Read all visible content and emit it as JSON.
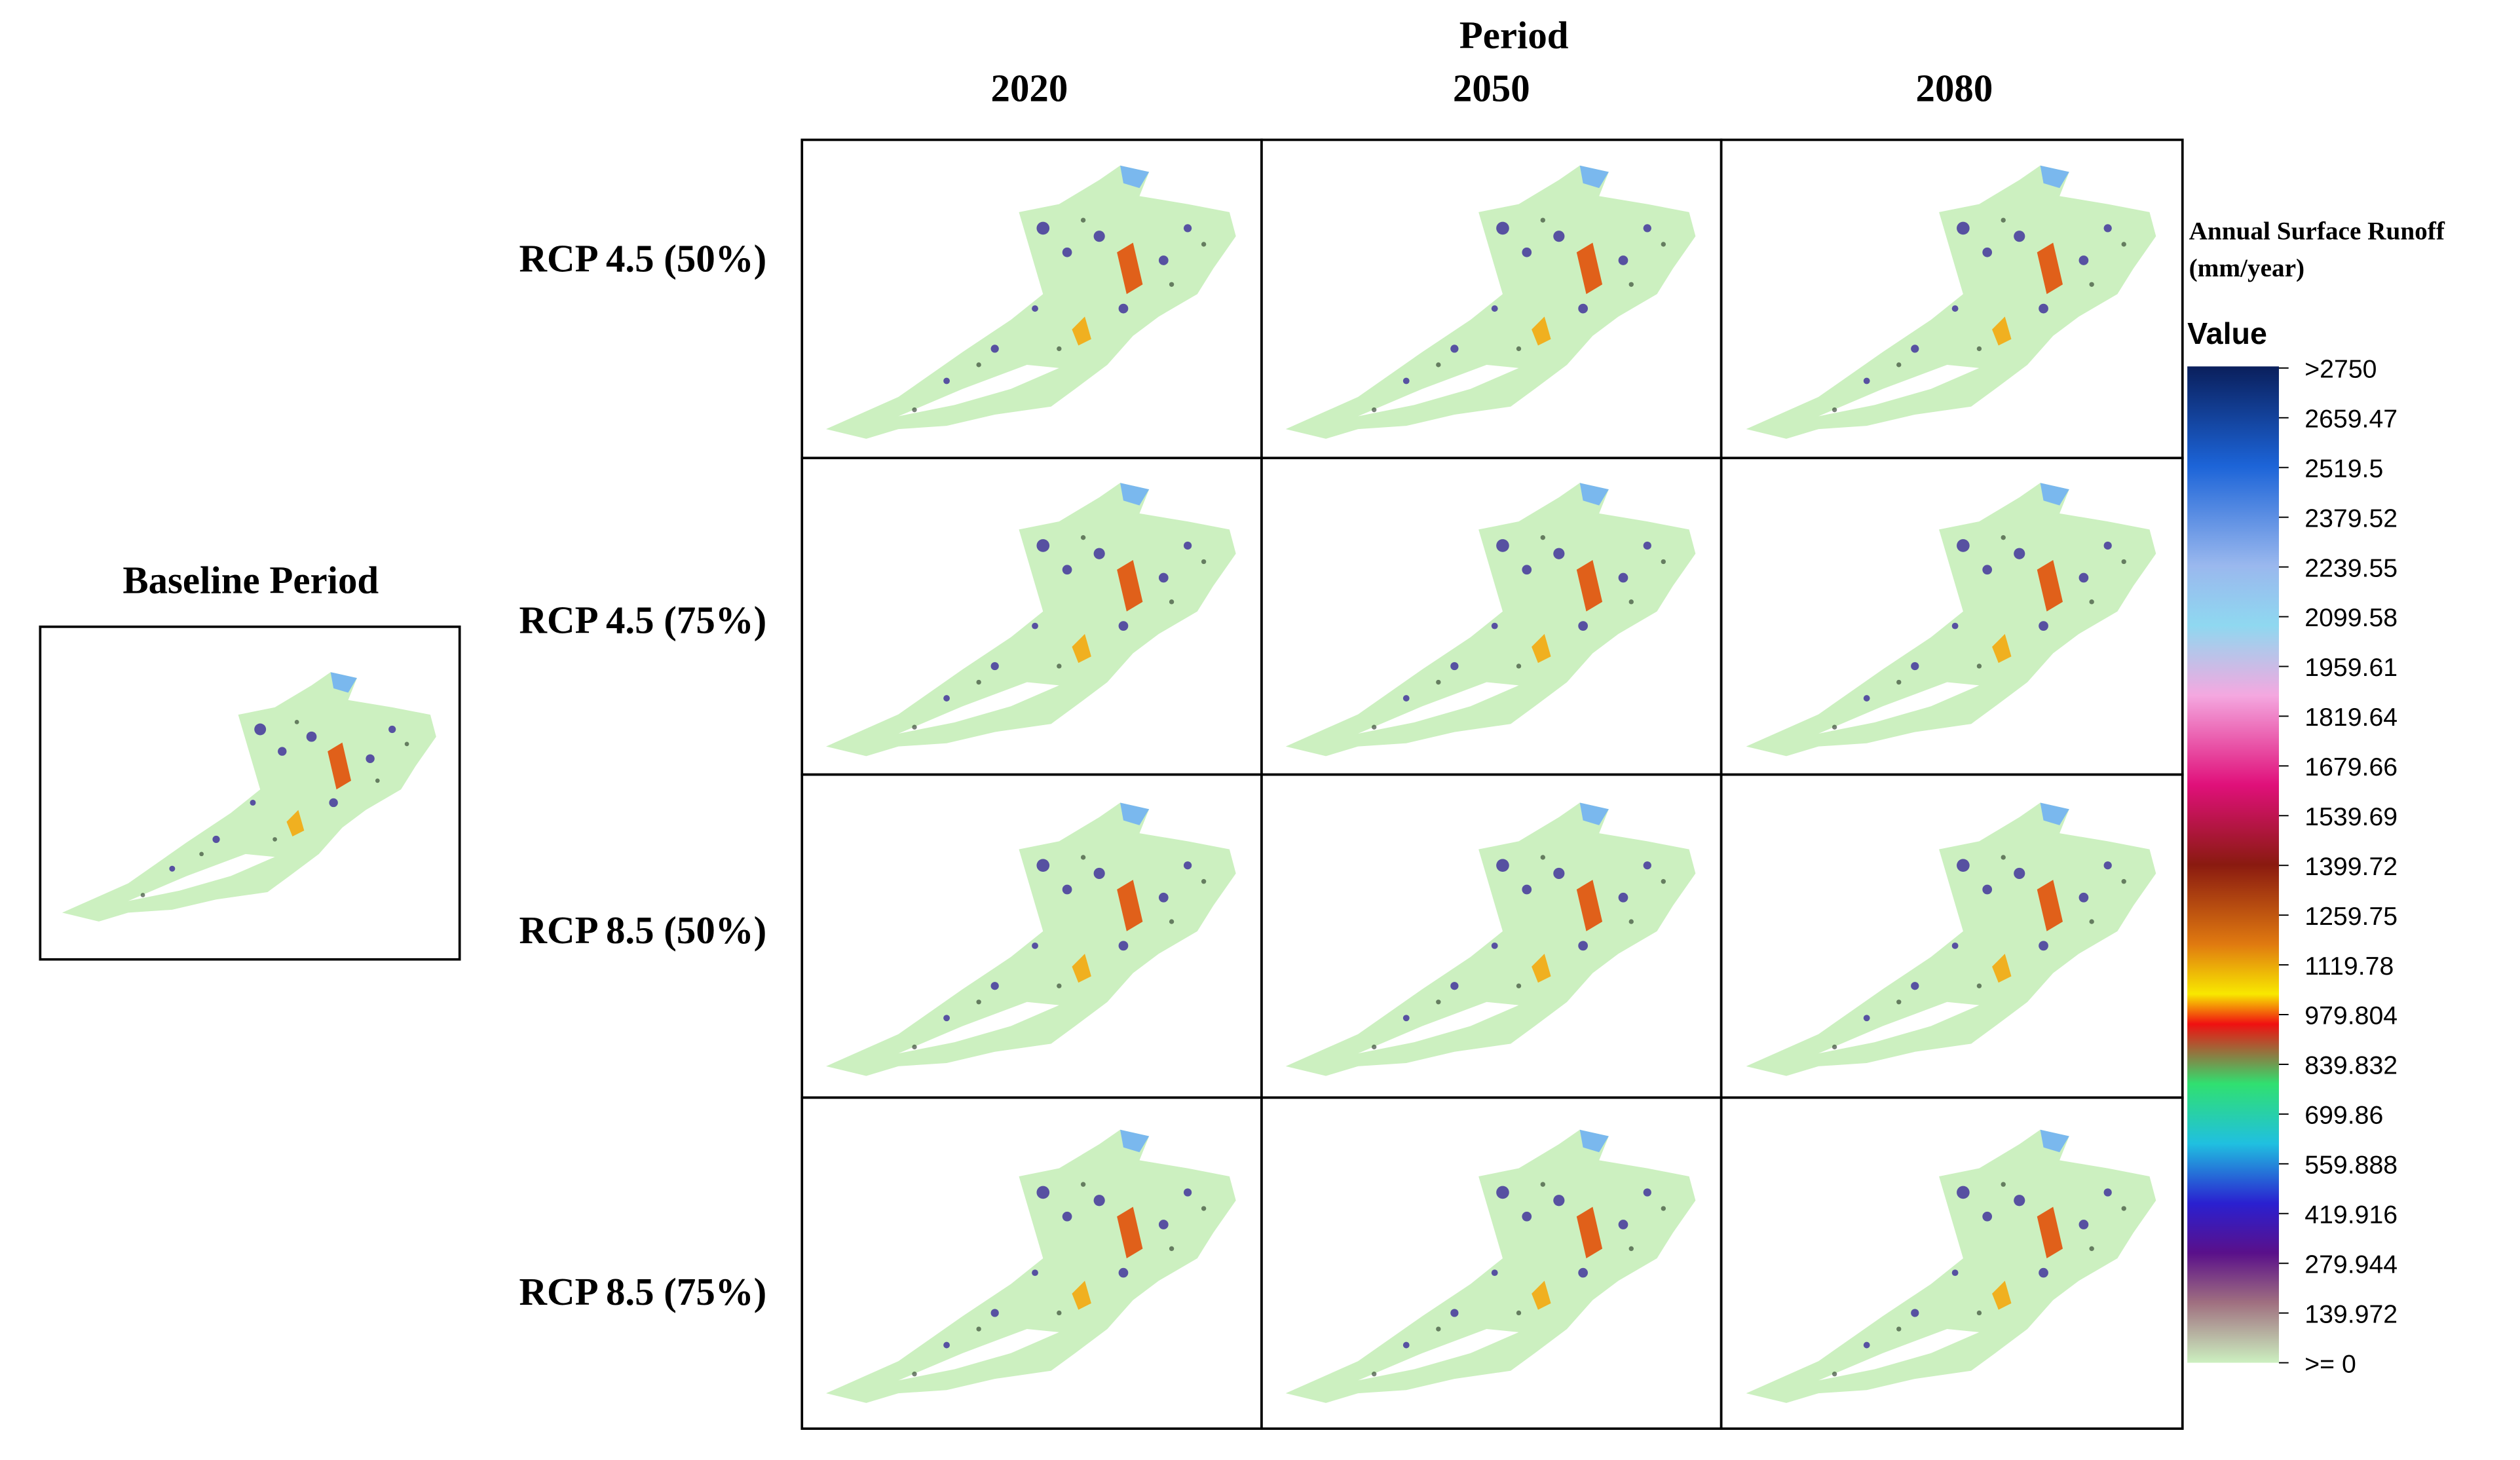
{
  "header": {
    "period": "Period",
    "columns": [
      "2020",
      "2050",
      "2080"
    ]
  },
  "rows": [
    "RCP 4.5 (50%)",
    "RCP 4.5 (75%)",
    "RCP 8.5 (50%)",
    "RCP 8.5 (75%)"
  ],
  "baseline": {
    "title": "Baseline Period"
  },
  "legend": {
    "title_lines": [
      "Annual Surface Runoff",
      "(mm/year)"
    ],
    "value_heading": "Value",
    "labels": [
      ">2750",
      "2659.47",
      "2519.5",
      "2379.52",
      "2239.55",
      "2099.58",
      "1959.61",
      "1819.64",
      "1679.66",
      "1539.69",
      "1399.72",
      "1259.75",
      "1119.78",
      "979.804",
      "839.832",
      "699.86",
      "559.888",
      "419.916",
      "279.944",
      "139.972",
      ">= 0"
    ]
  }
}
